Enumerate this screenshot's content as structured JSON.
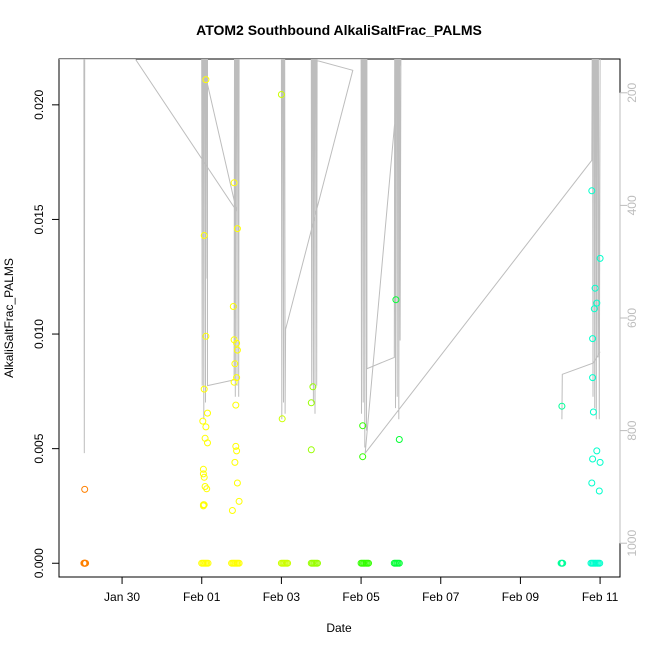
{
  "chart_data": {
    "type": "scatter",
    "title": "ATOM2 Southbound AlkaliSaltFrac_PALMS",
    "xlabel": "Date",
    "ylabel": "AlkaliSaltFrac_PALMS",
    "x_range": [
      "2017-01-28T10:00",
      "2017-02-11T12:00"
    ],
    "ylim": [
      -0.0006,
      0.022
    ],
    "x_ticks": [
      {
        "date": "2017-01-30",
        "label": "Jan 30"
      },
      {
        "date": "2017-02-01",
        "label": "Feb 01"
      },
      {
        "date": "2017-02-03",
        "label": "Feb 03"
      },
      {
        "date": "2017-02-05",
        "label": "Feb 05"
      },
      {
        "date": "2017-02-07",
        "label": "Feb 07"
      },
      {
        "date": "2017-02-09",
        "label": "Feb 09"
      },
      {
        "date": "2017-02-11",
        "label": "Feb 11"
      }
    ],
    "y_ticks": [
      {
        "value": 0.0,
        "label": "0.000"
      },
      {
        "value": 0.005,
        "label": "0.005"
      },
      {
        "value": 0.01,
        "label": "0.010"
      },
      {
        "value": 0.015,
        "label": "0.015"
      },
      {
        "value": 0.02,
        "label": "0.020"
      }
    ],
    "secondary_axis": {
      "side": "right",
      "range": [
        1060,
        140
      ],
      "color": "#bdbdbd",
      "ticks": [
        {
          "value": 200,
          "label": "200"
        },
        {
          "value": 400,
          "label": "400"
        },
        {
          "value": 600,
          "label": "600"
        },
        {
          "value": 800,
          "label": "800"
        },
        {
          "value": 1000,
          "label": "1000"
        }
      ]
    },
    "groups": [
      {
        "color": "#ff8000",
        "points": [
          [
            "2017-01-29T01:30",
            0.00322
          ],
          [
            "2017-01-29T01:00",
            0
          ],
          [
            "2017-01-29T01:15",
            0
          ],
          [
            "2017-01-29T01:30",
            0
          ],
          [
            "2017-01-29T01:45",
            0
          ],
          [
            "2017-01-29T02:00",
            0
          ]
        ]
      },
      {
        "color": "#ffff00",
        "points": [
          [
            "2017-02-01T01:00",
            0.0041
          ],
          [
            "2017-02-01T01:00",
            0.0039
          ],
          [
            "2017-02-01T01:30",
            0.00375
          ],
          [
            "2017-02-01T00:40",
            0.0062
          ],
          [
            "2017-02-01T03:30",
            0.00655
          ],
          [
            "2017-02-01T02:30",
            0.00595
          ],
          [
            "2017-02-01T02:00",
            0.00545
          ],
          [
            "2017-02-01T03:30",
            0.00525
          ],
          [
            "2017-02-01T02:00",
            0.00335
          ],
          [
            "2017-02-01T03:00",
            0.00325
          ],
          [
            "2017-02-01T01:30",
            0.00255
          ],
          [
            "2017-02-01T01:00",
            0.00255
          ],
          [
            "2017-02-01T01:00",
            0.0025
          ],
          [
            "2017-02-01T02:30",
            0.0099
          ],
          [
            "2017-02-01T01:30",
            0.0143
          ],
          [
            "2017-02-01T02:30",
            0.0211
          ],
          [
            "2017-02-01T01:30",
            0.0076
          ],
          [
            "2017-02-01T19:30",
            0.0166
          ],
          [
            "2017-02-01T21:30",
            0.0146
          ],
          [
            "2017-02-01T19:00",
            0.0112
          ],
          [
            "2017-02-01T21:00",
            0.0096
          ],
          [
            "2017-02-01T19:30",
            0.00975
          ],
          [
            "2017-02-01T21:30",
            0.0093
          ],
          [
            "2017-02-01T20:00",
            0.0087
          ],
          [
            "2017-02-01T21:00",
            0.0081
          ],
          [
            "2017-02-01T19:30",
            0.0079
          ],
          [
            "2017-02-01T20:30",
            0.0069
          ],
          [
            "2017-02-01T20:30",
            0.0051
          ],
          [
            "2017-02-01T21:00",
            0.0049
          ],
          [
            "2017-02-01T20:00",
            0.0044
          ],
          [
            "2017-02-01T21:30",
            0.0035
          ],
          [
            "2017-02-01T22:30",
            0.0027
          ],
          [
            "2017-02-01T18:30",
            0.0023
          ]
        ]
      },
      {
        "color": "#ffff00",
        "points": [
          [
            "2017-02-01T00:00",
            0
          ],
          [
            "2017-02-01T00:45",
            0
          ],
          [
            "2017-02-01T01:30",
            0
          ],
          [
            "2017-02-01T02:15",
            0
          ],
          [
            "2017-02-01T03:00",
            0
          ],
          [
            "2017-02-01T03:45",
            0
          ],
          [
            "2017-02-01T18:00",
            0
          ],
          [
            "2017-02-01T18:45",
            0
          ],
          [
            "2017-02-01T19:30",
            0
          ],
          [
            "2017-02-01T20:15",
            0
          ],
          [
            "2017-02-01T21:00",
            0
          ],
          [
            "2017-02-01T21:45",
            0
          ],
          [
            "2017-02-01T22:30",
            0
          ]
        ]
      },
      {
        "color": "#ccff00",
        "points": [
          [
            "2017-02-03T00:00",
            0.02045
          ],
          [
            "2017-02-03T00:30",
            0.0063
          ],
          [
            "2017-02-03T00:00",
            0
          ],
          [
            "2017-02-03T00:45",
            0
          ],
          [
            "2017-02-03T01:30",
            0
          ],
          [
            "2017-02-03T02:15",
            0
          ],
          [
            "2017-02-03T03:00",
            0
          ],
          [
            "2017-02-03T03:45",
            0
          ]
        ]
      },
      {
        "color": "#99ff00",
        "points": [
          [
            "2017-02-03T19:00",
            0.0077
          ],
          [
            "2017-02-03T18:00",
            0.007
          ],
          [
            "2017-02-03T18:00",
            0.00495
          ],
          [
            "2017-02-03T18:00",
            0
          ],
          [
            "2017-02-03T18:45",
            0
          ],
          [
            "2017-02-03T19:30",
            0
          ],
          [
            "2017-02-03T20:15",
            0
          ],
          [
            "2017-02-03T21:00",
            0
          ],
          [
            "2017-02-03T21:45",
            0
          ]
        ]
      },
      {
        "color": "#33ff00",
        "points": [
          [
            "2017-02-05T01:00",
            0.006
          ],
          [
            "2017-02-05T01:00",
            0.00465
          ],
          [
            "2017-02-05T00:00",
            0
          ],
          [
            "2017-02-05T00:45",
            0
          ],
          [
            "2017-02-05T01:30",
            0
          ],
          [
            "2017-02-05T02:15",
            0
          ],
          [
            "2017-02-05T03:00",
            0
          ],
          [
            "2017-02-05T03:45",
            0
          ],
          [
            "2017-02-05T04:30",
            0
          ]
        ]
      },
      {
        "color": "#00ff33",
        "points": [
          [
            "2017-02-05T21:00",
            0.0115
          ],
          [
            "2017-02-05T23:00",
            0.0054
          ],
          [
            "2017-02-05T20:00",
            0
          ],
          [
            "2017-02-05T20:45",
            0
          ],
          [
            "2017-02-05T21:30",
            0
          ],
          [
            "2017-02-05T22:15",
            0
          ],
          [
            "2017-02-05T23:00",
            0
          ]
        ]
      },
      {
        "color": "#00ff99",
        "points": [
          [
            "2017-02-10T01:00",
            0.00685
          ],
          [
            "2017-02-10T00:30",
            0
          ],
          [
            "2017-02-10T01:00",
            0
          ],
          [
            "2017-02-10T01:30",
            0
          ]
        ]
      },
      {
        "color": "#00ffcc",
        "points": [
          [
            "2017-02-10T19:00",
            0.01625
          ],
          [
            "2017-02-11T00:00",
            0.0133
          ],
          [
            "2017-02-10T21:00",
            0.012
          ],
          [
            "2017-02-10T22:00",
            0.01135
          ],
          [
            "2017-02-10T20:30",
            0.0111
          ],
          [
            "2017-02-10T19:30",
            0.0098
          ],
          [
            "2017-02-10T19:30",
            0.0081
          ],
          [
            "2017-02-10T20:00",
            0.0066
          ],
          [
            "2017-02-10T22:00",
            0.0049
          ],
          [
            "2017-02-10T19:30",
            0.00455
          ],
          [
            "2017-02-11T00:00",
            0.0044
          ],
          [
            "2017-02-10T19:00",
            0.0035
          ],
          [
            "2017-02-10T23:30",
            0.00315
          ],
          [
            "2017-02-10T18:30",
            0
          ],
          [
            "2017-02-10T19:15",
            0
          ],
          [
            "2017-02-10T20:00",
            0
          ],
          [
            "2017-02-10T20:45",
            0
          ],
          [
            "2017-02-10T21:30",
            0
          ],
          [
            "2017-02-10T22:15",
            0
          ],
          [
            "2017-02-10T23:00",
            0
          ],
          [
            "2017-02-10T23:45",
            0
          ]
        ]
      }
    ],
    "altitude_track": {
      "color": "#bdbdbd",
      "points": [
        [
          "2017-01-28T10:00",
          140
        ],
        [
          "2017-01-29T00:00",
          140
        ],
        [
          "2017-01-29T01:00",
          140
        ],
        [
          "2017-01-29T01:15",
          840
        ],
        [
          "2017-01-29T01:30",
          140
        ],
        [
          "2017-01-30T08:00",
          140
        ],
        [
          "2017-02-01T21:00",
          410
        ],
        [
          "2017-02-01T00:00",
          140
        ],
        [
          "2017-02-01T00:15",
          720
        ],
        [
          "2017-02-01T00:30",
          140
        ],
        [
          "2017-02-01T01:00",
          140
        ],
        [
          "2017-02-01T01:15",
          780
        ],
        [
          "2017-02-01T01:30",
          140
        ],
        [
          "2017-02-01T02:00",
          140
        ],
        [
          "2017-02-01T02:15",
          750
        ],
        [
          "2017-02-01T02:30",
          140
        ],
        [
          "2017-02-01T03:00",
          140
        ],
        [
          "2017-02-01T03:15",
          530
        ],
        [
          "2017-02-01T03:30",
          140
        ],
        [
          "2017-02-01T03:30",
          720
        ],
        [
          "2017-02-01T19:30",
          710
        ],
        [
          "2017-02-01T19:45",
          140
        ],
        [
          "2017-02-01T20:00",
          140
        ],
        [
          "2017-02-01T20:15",
          740
        ],
        [
          "2017-02-01T20:30",
          140
        ],
        [
          "2017-02-01T21:00",
          140
        ],
        [
          "2017-02-01T21:15",
          720
        ],
        [
          "2017-02-01T21:30",
          140
        ],
        [
          "2017-02-01T22:00",
          140
        ],
        [
          "2017-02-01T22:15",
          740
        ],
        [
          "2017-02-01T22:30",
          140
        ],
        [
          "2017-02-03T00:00",
          140
        ],
        [
          "2017-02-03T00:15",
          780
        ],
        [
          "2017-02-03T00:30",
          140
        ],
        [
          "2017-02-03T01:00",
          140
        ],
        [
          "2017-02-03T01:15",
          750
        ],
        [
          "2017-02-03T01:30",
          140
        ],
        [
          "2017-02-03T02:00",
          140
        ],
        [
          "2017-02-03T02:15",
          770
        ],
        [
          "2017-02-03T02:30",
          620
        ],
        [
          "2017-02-04T19:00",
          160
        ],
        [
          "2017-02-03T18:00",
          140
        ],
        [
          "2017-02-03T18:15",
          720
        ],
        [
          "2017-02-03T18:30",
          140
        ],
        [
          "2017-02-03T19:00",
          140
        ],
        [
          "2017-02-03T19:15",
          750
        ],
        [
          "2017-02-03T19:30",
          140
        ],
        [
          "2017-02-03T20:00",
          140
        ],
        [
          "2017-02-03T20:15",
          770
        ],
        [
          "2017-02-03T20:30",
          140
        ],
        [
          "2017-02-03T21:00",
          140
        ],
        [
          "2017-02-03T21:15",
          720
        ],
        [
          "2017-02-03T21:30",
          140
        ],
        [
          "2017-02-05T00:00",
          140
        ],
        [
          "2017-02-05T00:15",
          770
        ],
        [
          "2017-02-05T00:30",
          140
        ],
        [
          "2017-02-05T01:00",
          140
        ],
        [
          "2017-02-05T01:15",
          750
        ],
        [
          "2017-02-05T01:30",
          140
        ],
        [
          "2017-02-05T02:00",
          140
        ],
        [
          "2017-02-05T02:15",
          830
        ],
        [
          "2017-02-05T02:30",
          140
        ],
        [
          "2017-02-05T03:00",
          140
        ],
        [
          "2017-02-05T03:15",
          800
        ],
        [
          "2017-02-05T03:30",
          140
        ],
        [
          "2017-02-05T03:30",
          690
        ],
        [
          "2017-02-05T20:00",
          670
        ],
        [
          "2017-02-05T20:15",
          140
        ],
        [
          "2017-02-05T20:30",
          140
        ],
        [
          "2017-02-05T20:45",
          760
        ],
        [
          "2017-02-05T21:00",
          140
        ],
        [
          "2017-02-05T21:30",
          140
        ],
        [
          "2017-02-05T21:45",
          740
        ],
        [
          "2017-02-05T22:00",
          140
        ],
        [
          "2017-02-05T22:30",
          140
        ],
        [
          "2017-02-05T22:45",
          780
        ],
        [
          "2017-02-05T23:00",
          140
        ],
        [
          "2017-02-05T23:15",
          140
        ],
        [
          "2017-02-05T23:30",
          640
        ],
        [
          "2017-02-06T00:00",
          130
        ],
        [
          "2017-02-05T02:30",
          840
        ],
        [
          "2017-02-10T19:00",
          320
        ],
        [
          "2017-02-10T19:15",
          140
        ],
        [
          "2017-02-10T19:30",
          140
        ],
        [
          "2017-02-10T19:45",
          740
        ],
        [
          "2017-02-10T20:00",
          140
        ],
        [
          "2017-02-10T20:30",
          140
        ],
        [
          "2017-02-10T20:45",
          760
        ],
        [
          "2017-02-10T21:00",
          140
        ],
        [
          "2017-02-10T21:30",
          140
        ],
        [
          "2017-02-10T21:45",
          780
        ],
        [
          "2017-02-10T22:00",
          140
        ],
        [
          "2017-02-10T22:30",
          140
        ],
        [
          "2017-02-10T22:45",
          670
        ],
        [
          "2017-02-10T23:00",
          140
        ],
        [
          "2017-02-10T23:30",
          780
        ],
        [
          "2017-02-11T00:00",
          140
        ]
      ]
    },
    "extra_track": {
      "color": "#bdbdbd",
      "points": [
        [
          "2017-02-10T01:00",
          780
        ],
        [
          "2017-02-10T01:15",
          700
        ],
        [
          "2017-02-10T20:00",
          680
        ],
        [
          "2017-02-11T00:00",
          660
        ]
      ]
    },
    "grid": false,
    "legend": "none"
  }
}
